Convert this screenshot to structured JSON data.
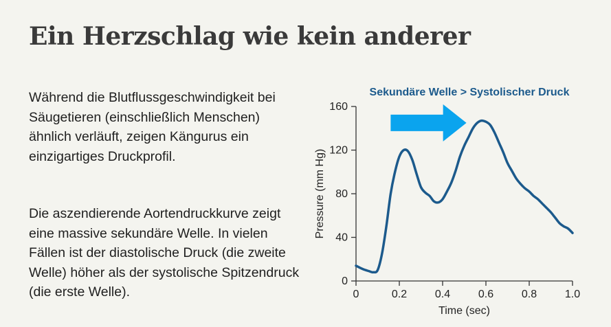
{
  "page": {
    "title": "Ein Herzschlag wie kein anderer",
    "paragraph_1": "Während die Blutflussgeschwindigkeit bei Säugetieren (einschließlich Menschen) ähnlich verläuft, zeigen Kängurus ein einzigartiges Druckprofil.",
    "paragraph_2": "Die aszendierende Aortendruckkurve zeigt eine massive sekundäre Welle. In vielen Fällen ist der diastolische Druck (die zweite Welle) höher als der systolische Spitzendruck (die erste Welle)."
  },
  "chart_data": {
    "type": "line",
    "title": "",
    "xlabel": "Time (sec)",
    "ylabel": "Pressure (mm Hg)",
    "xlim": [
      0,
      1.0
    ],
    "ylim": [
      0,
      160
    ],
    "xticks": [
      0,
      0.2,
      0.4,
      0.6,
      0.8,
      1.0
    ],
    "xtick_labels": [
      "0",
      "0.2",
      "0.4",
      "0.6",
      "0.8",
      "1.0"
    ],
    "yticks": [
      0,
      40,
      80,
      120,
      160
    ],
    "ytick_labels": [
      "0",
      "40",
      "80",
      "120",
      "160"
    ],
    "grid": false,
    "line_color": "#1c5a8c",
    "annotation": {
      "text": "Sekundäre Welle > Systolischer Druck",
      "arrow_color": "#0aa4ee",
      "arrow_from": [
        0.16,
        145
      ],
      "arrow_to": [
        0.51,
        145
      ]
    },
    "series": [
      {
        "x": [
          0.0,
          0.03,
          0.06,
          0.08,
          0.1,
          0.12,
          0.14,
          0.16,
          0.18,
          0.2,
          0.22,
          0.24,
          0.26,
          0.28,
          0.3,
          0.32,
          0.34,
          0.36,
          0.38,
          0.4,
          0.42,
          0.44,
          0.46,
          0.48,
          0.5,
          0.52,
          0.54,
          0.56,
          0.58,
          0.6,
          0.62,
          0.64,
          0.66,
          0.68,
          0.7,
          0.72,
          0.74,
          0.76,
          0.78,
          0.8,
          0.82,
          0.84,
          0.86,
          0.88,
          0.9,
          0.92,
          0.94,
          0.96,
          0.98,
          1.0
        ],
        "values": [
          14,
          11,
          9,
          8,
          10,
          25,
          50,
          80,
          100,
          114,
          120,
          119,
          111,
          98,
          86,
          81,
          78,
          73,
          72,
          75,
          82,
          90,
          101,
          114,
          124,
          132,
          140,
          145,
          147,
          146,
          143,
          136,
          127,
          118,
          108,
          101,
          94,
          89,
          85,
          82,
          78,
          75,
          71,
          67,
          63,
          58,
          53,
          50,
          48,
          44
        ]
      }
    ]
  }
}
